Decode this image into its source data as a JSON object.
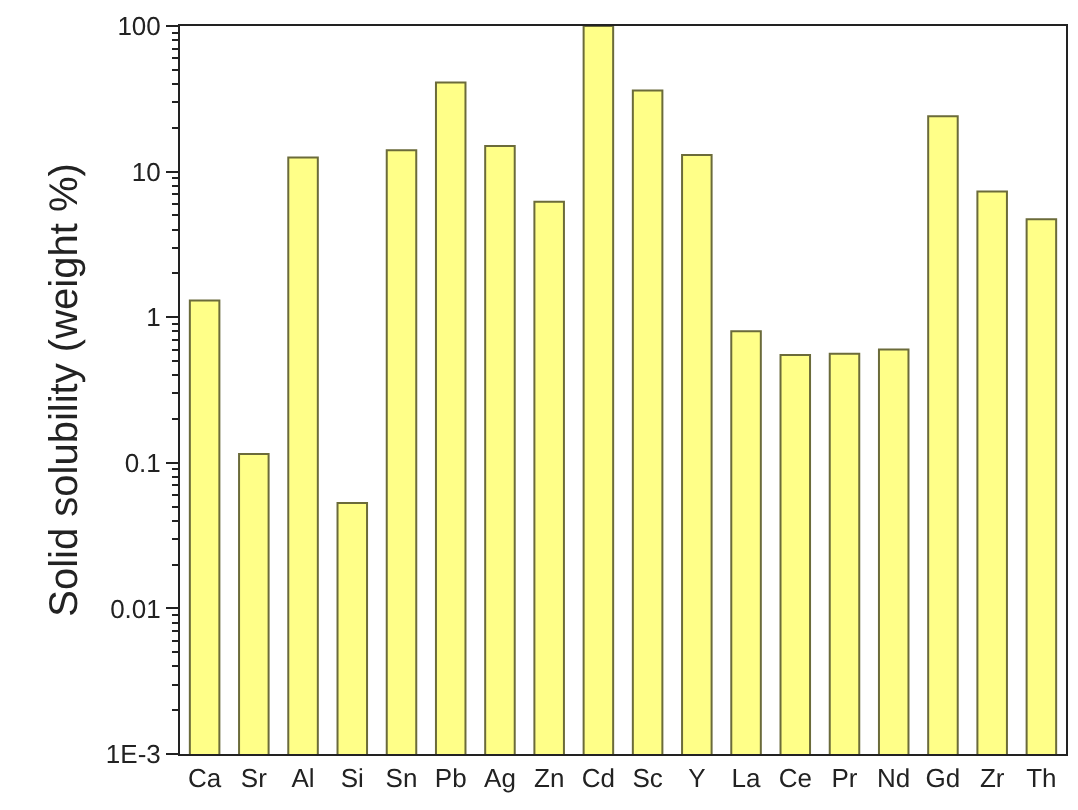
{
  "chart_data": {
    "type": "bar",
    "ylabel": "Solid solubility (weight %)",
    "categories": [
      "Ca",
      "Sr",
      "Al",
      "Si",
      "Sn",
      "Pb",
      "Ag",
      "Zn",
      "Cd",
      "Sc",
      "Y",
      "La",
      "Ce",
      "Pr",
      "Nd",
      "Gd",
      "Zr",
      "Th"
    ],
    "values": [
      1.3,
      0.115,
      12.5,
      0.053,
      14,
      41,
      15,
      6.2,
      100,
      36,
      13,
      0.8,
      0.55,
      0.56,
      0.6,
      24,
      7.3,
      4.7
    ],
    "color": "#ffff88",
    "log": true,
    "ylim": [
      0.001,
      100
    ],
    "yticks": [
      {
        "value": 0.001,
        "label": "1E-3"
      },
      0.01,
      0.1,
      1,
      10,
      100
    ]
  }
}
